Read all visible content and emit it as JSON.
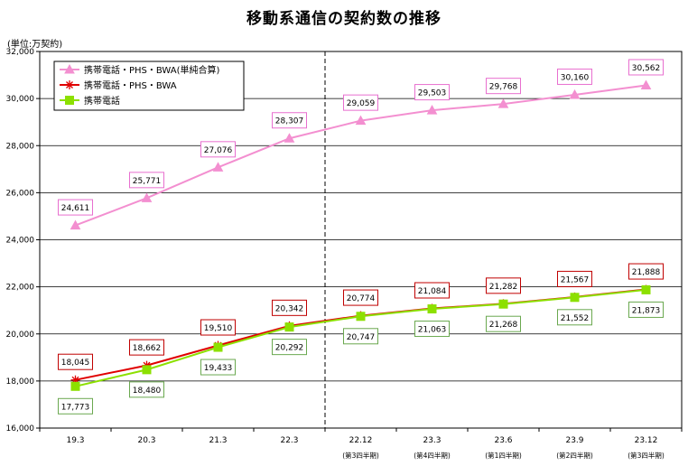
{
  "chart_data": {
    "type": "line",
    "title": "移動系通信の契約数の推移",
    "ylabel": "(単位:万契約)",
    "ylim": [
      16000,
      32000
    ],
    "yticks": [
      "16,000",
      "18,000",
      "20,000",
      "22,000",
      "24,000",
      "26,000",
      "28,000",
      "30,000",
      "32,000"
    ],
    "categories": [
      "19.3",
      "20.3",
      "21.3",
      "22.3",
      "22.12",
      "23.3",
      "23.6",
      "23.9",
      "23.12"
    ],
    "category_sublabels": [
      "",
      "",
      "",
      "",
      "(第3四半期)",
      "(第4四半期)",
      "(第1四半期)",
      "(第2四半期)",
      "(第3四半期)"
    ],
    "grid": true,
    "legend_position": "top-left",
    "divider_after_category": "22.3",
    "series": [
      {
        "name": "携帯電話・PHS・BWA(単純合算)",
        "color": "#f38fd0",
        "marker": "triangle",
        "label_border": "#e86fcf",
        "label_position": "above",
        "values": [
          24611,
          25771,
          27076,
          28307,
          29059,
          29503,
          29768,
          30160,
          30562
        ],
        "labels": [
          "24,611",
          "25,771",
          "27,076",
          "28,307",
          "29,059",
          "29,503",
          "29,768",
          "30,160",
          "30,562"
        ]
      },
      {
        "name": "携帯電話・PHS・BWA",
        "color": "#e00000",
        "marker": "asterisk",
        "label_border": "#c00000",
        "label_position": "above",
        "values": [
          18045,
          18662,
          19510,
          20342,
          20774,
          21084,
          21282,
          21567,
          21888
        ],
        "labels": [
          "18,045",
          "18,662",
          "19,510",
          "20,342",
          "20,774",
          "21,084",
          "21,282",
          "21,567",
          "21,888"
        ]
      },
      {
        "name": "携帯電話",
        "color": "#8ce000",
        "marker": "square",
        "label_border": "#6aa84f",
        "label_position": "below",
        "values": [
          17773,
          18480,
          19433,
          20292,
          20747,
          21063,
          21268,
          21552,
          21873
        ],
        "labels": [
          "17,773",
          "18,480",
          "19,433",
          "20,292",
          "20,747",
          "21,063",
          "21,268",
          "21,552",
          "21,873"
        ]
      }
    ]
  }
}
